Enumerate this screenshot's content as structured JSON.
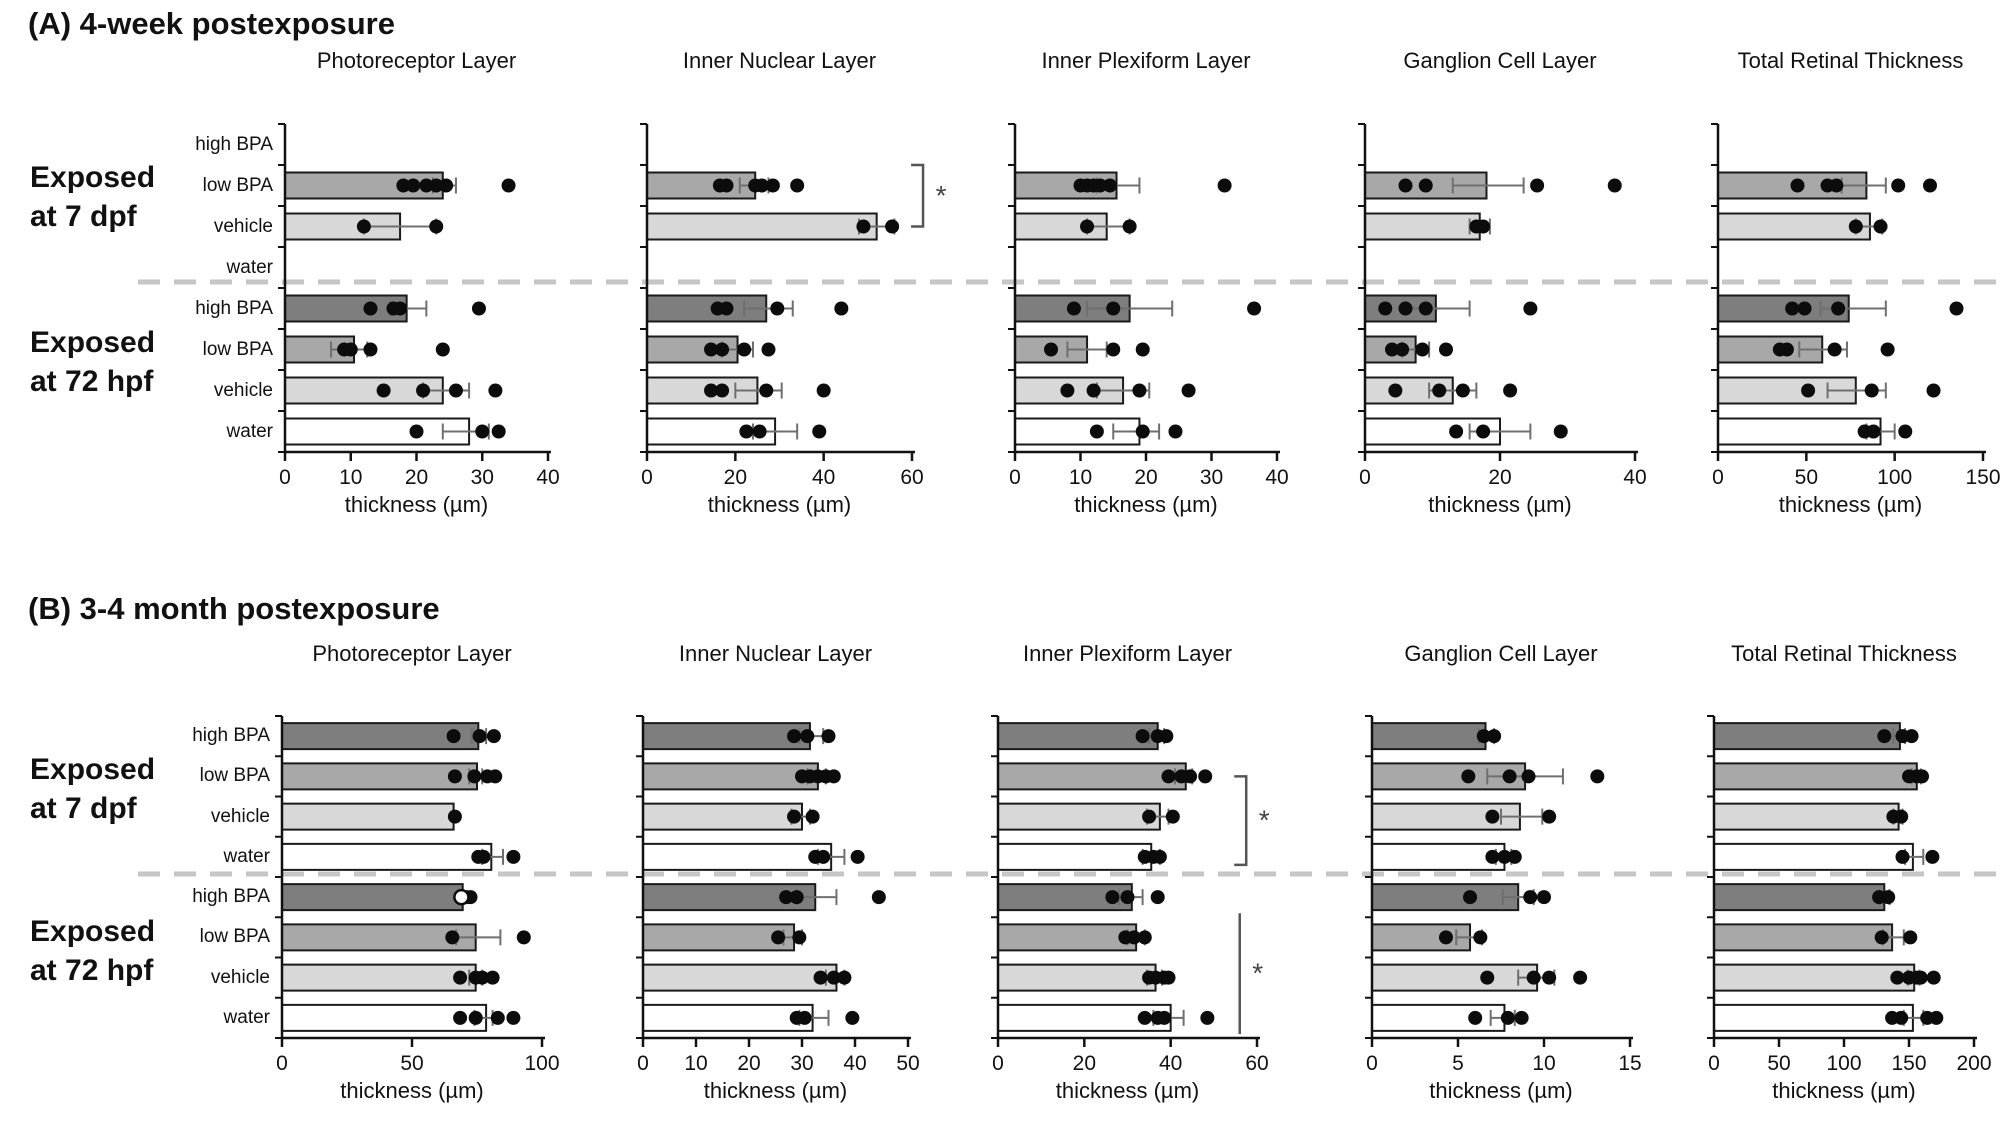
{
  "axis_label": "thickness (µm)",
  "row_labels": [
    "high BPA",
    "low BPA",
    "vehicle",
    "water"
  ],
  "group_labels": [
    [
      "Exposed",
      "at 7 dpf"
    ],
    [
      "Exposed",
      "at 72 hpf"
    ]
  ],
  "colors": {
    "high_bpa_fill": "#7e7e7e",
    "low_bpa_fill": "#a8a8a8",
    "vehicle_fill": "#d8d8d8",
    "water_fill": "#ffffff",
    "bar_stroke": "#1a1a1a",
    "error_bar": "#6f6f6f",
    "dot": "#0c0c0c",
    "separator": "#c6c6c6",
    "axis": "#111111",
    "star": "#444444"
  },
  "chart_data": [
    {
      "panel_title": "(A) 4-week postexposure",
      "type": "bar",
      "orientation": "horizontal",
      "categories": [
        "high BPA",
        "low BPA",
        "vehicle",
        "water",
        "high BPA",
        "low BPA",
        "vehicle",
        "water"
      ],
      "xlabel": "thickness (µm)",
      "charts": [
        {
          "title": "Photoreceptor Layer",
          "xlim": 40,
          "ticks": [
            0,
            10,
            20,
            30,
            40
          ],
          "bars": [
            null,
            24,
            17.5,
            null,
            18.5,
            10.5,
            24,
            28
          ],
          "err": [
            null,
            [
              22.5,
              26
            ],
            [
              12,
              23
            ],
            null,
            [
              16,
              21.5
            ],
            [
              7,
              12.5
            ],
            [
              21,
              28
            ],
            [
              24,
              31
            ]
          ],
          "dots": [
            [],
            [
              18,
              19.5,
              21.5,
              23,
              24.5,
              34
            ],
            [
              12,
              23
            ],
            [],
            [
              13,
              16.5,
              17.5,
              29.5
            ],
            [
              9,
              10,
              13,
              24
            ],
            [
              15,
              21,
              26,
              32
            ],
            [
              20,
              30,
              32.5
            ]
          ]
        },
        {
          "title": "Inner Nuclear Layer",
          "xlim": 60,
          "ticks": [
            0,
            20,
            40,
            60
          ],
          "bars": [
            null,
            24.5,
            52,
            null,
            27,
            20.5,
            25,
            29
          ],
          "err": [
            null,
            [
              21,
              27.5
            ],
            [
              48,
              56
            ],
            null,
            [
              22,
              33
            ],
            [
              17,
              24
            ],
            [
              20,
              30.5
            ],
            [
              24,
              34
            ]
          ],
          "dots": [
            [],
            [
              16.5,
              18,
              24.5,
              26,
              28.5,
              34
            ],
            [
              49,
              55.5
            ],
            [],
            [
              16,
              18,
              29.5,
              44
            ],
            [
              14.5,
              17,
              22,
              27.5
            ],
            [
              14.5,
              17,
              27,
              40
            ],
            [
              22.5,
              25.5,
              39
            ]
          ],
          "sig": [
            {
              "type": "bracket",
              "from_row": 0.5,
              "to_row": 2,
              "x": 62.5,
              "label": "*"
            }
          ]
        },
        {
          "title": "Inner Plexiform Layer",
          "xlim": 40,
          "ticks": [
            0,
            10,
            20,
            30,
            40
          ],
          "bars": [
            null,
            15.5,
            14,
            null,
            17.5,
            11,
            16.5,
            19
          ],
          "err": [
            null,
            [
              12.5,
              19
            ],
            [
              11,
              17.5
            ],
            null,
            [
              11,
              24
            ],
            [
              8,
              14
            ],
            [
              12.5,
              20.5
            ],
            [
              15,
              22
            ]
          ],
          "dots": [
            [],
            [
              10,
              11,
              12,
              13,
              14.5,
              32
            ],
            [
              11,
              17.5
            ],
            [],
            [
              9,
              15,
              36.5
            ],
            [
              5.5,
              15,
              19.5
            ],
            [
              8,
              12,
              19,
              26.5
            ],
            [
              12.5,
              19.5,
              24.5
            ]
          ]
        },
        {
          "title": "Ganglion Cell Layer",
          "xlim": 40,
          "ticks": [
            0,
            20,
            40
          ],
          "bars": [
            null,
            18,
            17,
            null,
            10.5,
            7.5,
            13,
            20
          ],
          "err": [
            null,
            [
              13,
              23.5
            ],
            [
              15.5,
              18.5
            ],
            null,
            [
              6,
              15.5
            ],
            [
              5.5,
              9.5
            ],
            [
              9.5,
              16.5
            ],
            [
              15.5,
              24.5
            ]
          ],
          "dots": [
            [],
            [
              6,
              9,
              25.5,
              37
            ],
            [
              16.5,
              17.5
            ],
            [],
            [
              3,
              6,
              9,
              24.5
            ],
            [
              4,
              5.5,
              8.5,
              12
            ],
            [
              4.5,
              11,
              14.5,
              21.5
            ],
            [
              13.5,
              17.5,
              29
            ]
          ]
        },
        {
          "title": "Total Retinal Thickness",
          "xlim": 150,
          "ticks": [
            0,
            50,
            100,
            150
          ],
          "bars": [
            null,
            84,
            86,
            null,
            74,
            59,
            78,
            92
          ],
          "err": [
            null,
            [
              70,
              95
            ],
            [
              78,
              93
            ],
            null,
            [
              58,
              95
            ],
            [
              46,
              73
            ],
            [
              62,
              95
            ],
            [
              84,
              100
            ]
          ],
          "dots": [
            [],
            [
              45,
              62,
              67,
              102,
              120
            ],
            [
              78,
              92
            ],
            [],
            [
              42,
              49,
              68,
              135
            ],
            [
              35,
              39,
              66,
              96
            ],
            [
              51,
              87,
              122
            ],
            [
              83,
              88,
              106
            ]
          ]
        }
      ]
    },
    {
      "panel_title": "(B) 3-4 month postexposure",
      "type": "bar",
      "orientation": "horizontal",
      "categories": [
        "high BPA",
        "low BPA",
        "vehicle",
        "water",
        "high BPA",
        "low BPA",
        "vehicle",
        "water"
      ],
      "xlabel": "thickness (µm)",
      "charts": [
        {
          "title": "Photoreceptor Layer",
          "xlim": 100,
          "ticks": [
            0,
            50,
            100
          ],
          "bars": [
            75.5,
            75,
            66,
            80.5,
            69.5,
            74.5,
            74.5,
            78.5
          ],
          "err": [
            [
              73,
              78.5
            ],
            [
              72,
              77
            ],
            null,
            [
              77,
              85
            ],
            null,
            [
              67,
              84
            ],
            [
              72,
              77
            ],
            [
              74,
              81
            ]
          ],
          "dots": [
            [
              66,
              76,
              81.5
            ],
            [
              66.5,
              74,
              79,
              82
            ],
            [
              66.5
            ],
            [
              75.5,
              77.5,
              89
            ],
            [
              71,
              72.5
            ],
            [
              65.5,
              93
            ],
            [
              68.5,
              74.5,
              77,
              81
            ],
            [
              68.5,
              74.5,
              83,
              89
            ]
          ],
          "open_dots": {
            "4": [
              69
            ]
          }
        },
        {
          "title": "Inner Nuclear Layer",
          "xlim": 50,
          "ticks": [
            0,
            10,
            20,
            30,
            40,
            50
          ],
          "bars": [
            31.5,
            33,
            30,
            35.5,
            32.5,
            28.5,
            36.5,
            32
          ],
          "err": [
            [
              29.5,
              34
            ],
            [
              31,
              34.5
            ],
            [
              28,
              31.5
            ],
            [
              33,
              38
            ],
            [
              29,
              36.5
            ],
            [
              26.5,
              30
            ],
            [
              34.5,
              38
            ],
            [
              29.5,
              35
            ]
          ],
          "dots": [
            [
              28.5,
              31,
              35
            ],
            [
              30,
              31.5,
              33,
              34.5,
              36
            ],
            [
              28.5,
              32
            ],
            [
              32.5,
              34,
              40.5
            ],
            [
              27,
              29,
              44.5
            ],
            [
              25.5,
              29.5
            ],
            [
              33.5,
              36,
              38
            ],
            [
              29,
              30.5,
              39.5
            ]
          ]
        },
        {
          "title": "Inner Plexiform Layer",
          "xlim": 60,
          "ticks": [
            0,
            20,
            40,
            60
          ],
          "bars": [
            37,
            43.5,
            37.5,
            35.5,
            31,
            32,
            36.5,
            40
          ],
          "err": [
            [
              35,
              38.5
            ],
            [
              41,
              45
            ],
            [
              34.5,
              39.5
            ],
            [
              33.5,
              37.5
            ],
            [
              28,
              33.5
            ],
            [
              30,
              34
            ],
            [
              34.5,
              38
            ],
            [
              36,
              43
            ]
          ],
          "dots": [
            [
              33.5,
              37,
              39
            ],
            [
              39.5,
              42.5,
              44.5,
              48
            ],
            [
              35,
              40.5
            ],
            [
              34,
              36,
              37.5
            ],
            [
              26.5,
              30,
              37
            ],
            [
              29.5,
              31.5,
              34
            ],
            [
              35,
              36.5,
              38.5,
              39.5
            ],
            [
              34,
              37,
              38.5,
              48.5
            ]
          ],
          "sig": [
            {
              "type": "bracket",
              "from_row": 1,
              "to_row": 3.2,
              "x": 57.5,
              "label": "*"
            },
            {
              "type": "vline",
              "from_row": 4.4,
              "to_row": 7.4,
              "x": 56,
              "label": "*"
            }
          ]
        },
        {
          "title": "Ganglion Cell Layer",
          "xlim": 15,
          "ticks": [
            0,
            5,
            10,
            15
          ],
          "bars": [
            6.6,
            8.9,
            8.6,
            7.7,
            8.5,
            5.7,
            9.6,
            7.7
          ],
          "err": [
            [
              6.2,
              7.1
            ],
            [
              6.7,
              11.1
            ],
            [
              7.5,
              9.9
            ],
            [
              7.2,
              8.1
            ],
            [
              7.6,
              9.4
            ],
            [
              4.9,
              6.4
            ],
            [
              8.5,
              10.6
            ],
            [
              6.9,
              8.3
            ]
          ],
          "dots": [
            [
              6.5,
              7.1
            ],
            [
              5.6,
              8,
              9.1,
              13.1
            ],
            [
              7,
              10.3
            ],
            [
              7,
              7.7,
              8.3
            ],
            [
              5.7,
              9.2,
              10
            ],
            [
              4.3,
              6.3
            ],
            [
              6.7,
              9.4,
              10.3,
              12.1
            ],
            [
              6,
              7.9,
              8.7
            ]
          ]
        },
        {
          "title": "Total Retinal Thickness",
          "xlim": 200,
          "ticks": [
            0,
            50,
            100,
            150,
            200
          ],
          "bars": [
            143,
            156,
            142,
            153,
            131,
            137,
            154,
            153
          ],
          "err": [
            [
              138,
              147
            ],
            [
              152,
              159
            ],
            [
              138,
              145
            ],
            [
              147,
              161
            ],
            [
              127,
              135
            ],
            [
              130,
              146
            ],
            [
              149,
              158
            ],
            [
              146,
              161
            ]
          ],
          "dots": [
            [
              131,
              145,
              152
            ],
            [
              150,
              156,
              160
            ],
            [
              138,
              144
            ],
            [
              145,
              168
            ],
            [
              127,
              134
            ],
            [
              129,
              151
            ],
            [
              141,
              150,
              156,
              159,
              169
            ],
            [
              137,
              144,
              164,
              171
            ]
          ]
        }
      ]
    }
  ]
}
